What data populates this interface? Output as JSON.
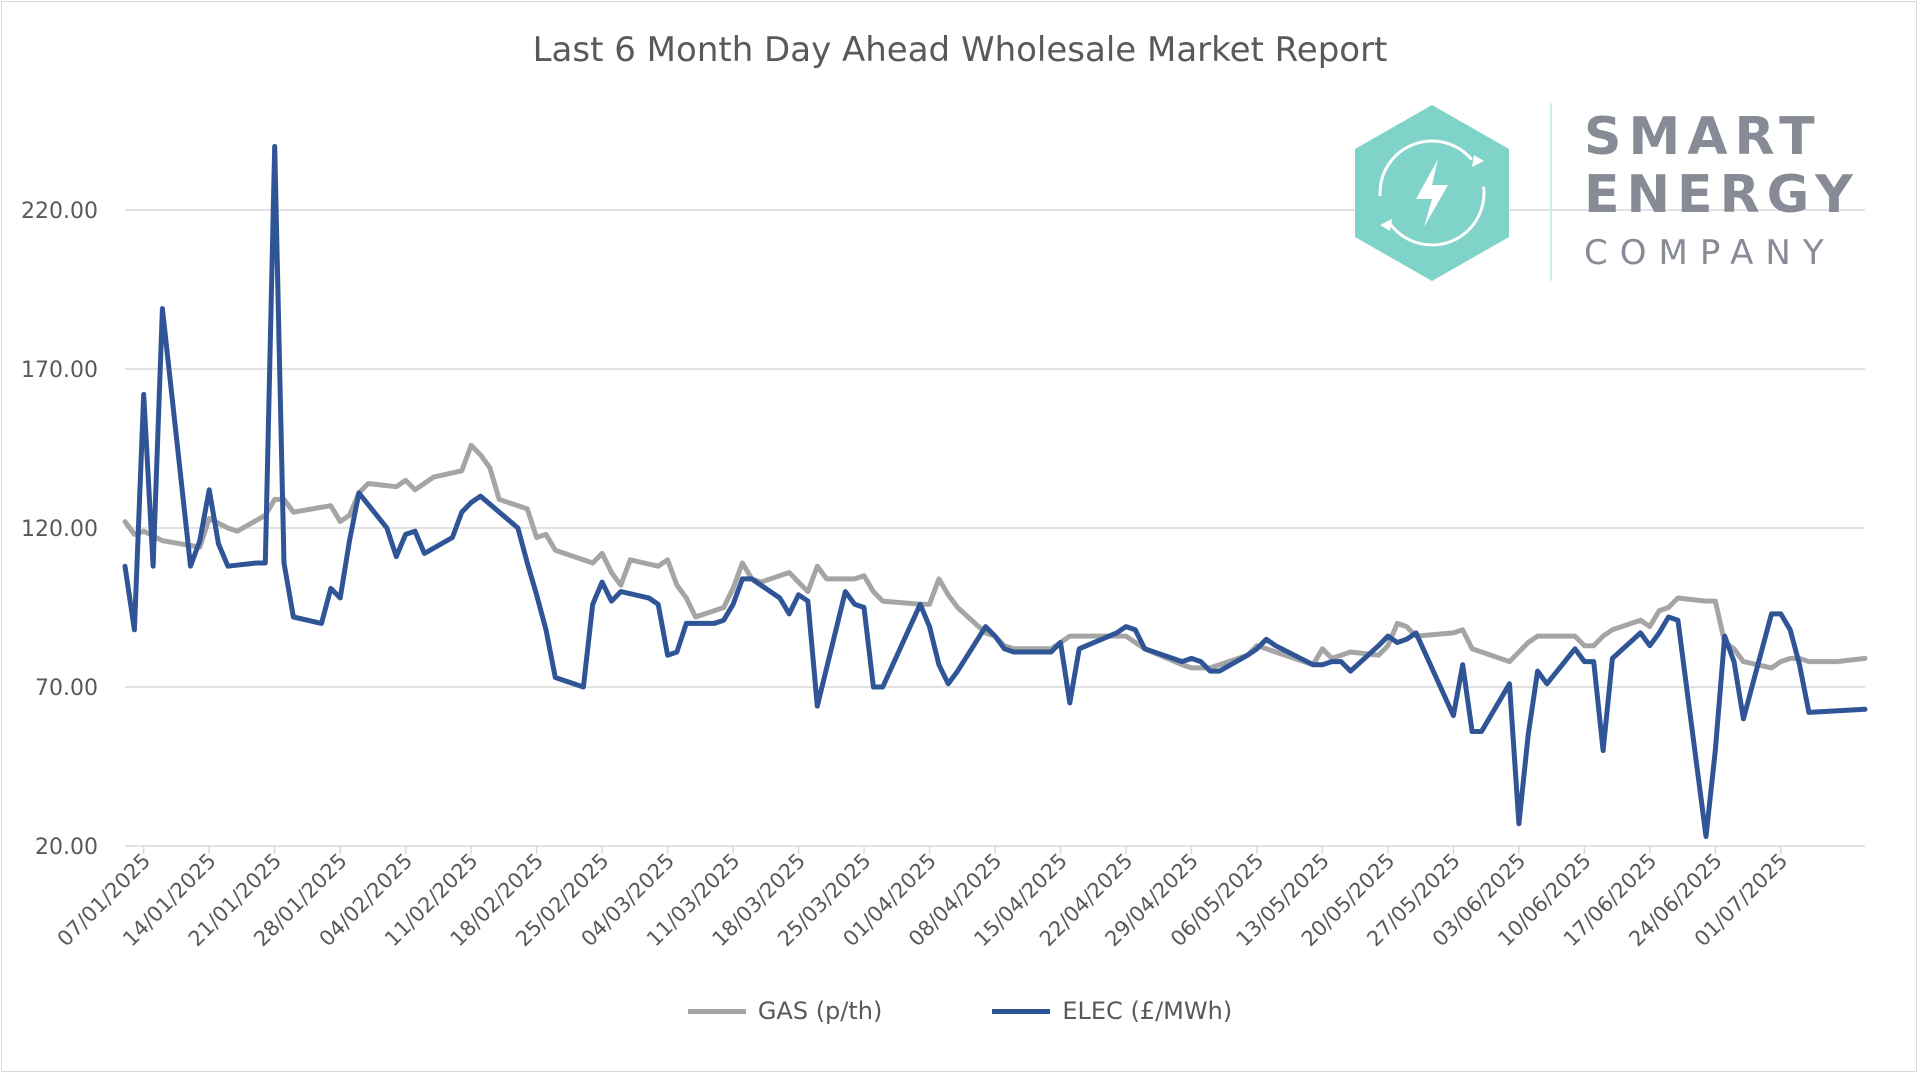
{
  "chart_data": {
    "type": "line",
    "title": "Last 6 Month Day Ahead Wholesale Market Report",
    "xlabel": "",
    "ylabel": "",
    "x_start": "05/01/2025",
    "x_end": "10/07/2025",
    "x_tick_labels": [
      "07/01/2025",
      "14/01/2025",
      "21/01/2025",
      "28/01/2025",
      "04/02/2025",
      "11/02/2025",
      "18/02/2025",
      "25/02/2025",
      "04/03/2025",
      "11/03/2025",
      "18/03/2025",
      "25/03/2025",
      "01/04/2025",
      "08/04/2025",
      "15/04/2025",
      "22/04/2025",
      "29/04/2025",
      "06/05/2025",
      "13/05/2025",
      "20/05/2025",
      "27/05/2025",
      "03/06/2025",
      "10/06/2025",
      "17/06/2025",
      "24/06/2025",
      "01/07/2025"
    ],
    "y_ticks": [
      20,
      70,
      120,
      170,
      220
    ],
    "y_tick_labels": [
      "20.00",
      "70.00",
      "120.00",
      "170.00",
      "220.00"
    ],
    "ylim": [
      20,
      240
    ],
    "grid": true,
    "legend_position": "bottom",
    "series": [
      {
        "name": "GAS (p/th)",
        "color": "#a5a5a5",
        "points": [
          [
            "05/01/2025",
            122
          ],
          [
            "06/01/2025",
            118
          ],
          [
            "07/01/2025",
            119
          ],
          [
            "09/01/2025",
            116
          ],
          [
            "13/01/2025",
            114
          ],
          [
            "14/01/2025",
            123
          ],
          [
            "16/01/2025",
            120
          ],
          [
            "17/01/2025",
            119
          ],
          [
            "20/01/2025",
            124
          ],
          [
            "21/01/2025",
            129
          ],
          [
            "22/01/2025",
            129
          ],
          [
            "23/01/2025",
            125
          ],
          [
            "27/01/2025",
            127
          ],
          [
            "28/01/2025",
            122
          ],
          [
            "29/01/2025",
            124
          ],
          [
            "30/01/2025",
            131
          ],
          [
            "31/01/2025",
            134
          ],
          [
            "03/02/2025",
            133
          ],
          [
            "04/02/2025",
            135
          ],
          [
            "05/02/2025",
            132
          ],
          [
            "07/02/2025",
            136
          ],
          [
            "10/02/2025",
            138
          ],
          [
            "11/02/2025",
            146
          ],
          [
            "12/02/2025",
            143
          ],
          [
            "13/02/2025",
            139
          ],
          [
            "14/02/2025",
            129
          ],
          [
            "17/02/2025",
            126
          ],
          [
            "18/02/2025",
            117
          ],
          [
            "19/02/2025",
            118
          ],
          [
            "20/02/2025",
            113
          ],
          [
            "24/02/2025",
            109
          ],
          [
            "25/02/2025",
            112
          ],
          [
            "26/02/2025",
            106
          ],
          [
            "27/02/2025",
            102
          ],
          [
            "28/02/2025",
            110
          ],
          [
            "03/03/2025",
            108
          ],
          [
            "04/03/2025",
            110
          ],
          [
            "05/03/2025",
            102
          ],
          [
            "06/03/2025",
            98
          ],
          [
            "07/03/2025",
            92
          ],
          [
            "10/03/2025",
            95
          ],
          [
            "11/03/2025",
            101
          ],
          [
            "12/03/2025",
            109
          ],
          [
            "13/03/2025",
            104
          ],
          [
            "14/03/2025",
            103
          ],
          [
            "17/03/2025",
            106
          ],
          [
            "18/03/2025",
            103
          ],
          [
            "19/03/2025",
            100
          ],
          [
            "20/03/2025",
            108
          ],
          [
            "21/03/2025",
            104
          ],
          [
            "24/03/2025",
            104
          ],
          [
            "25/03/2025",
            105
          ],
          [
            "26/03/2025",
            100
          ],
          [
            "27/03/2025",
            97
          ],
          [
            "31/03/2025",
            96
          ],
          [
            "01/04/2025",
            96
          ],
          [
            "02/04/2025",
            104
          ],
          [
            "03/04/2025",
            99
          ],
          [
            "04/04/2025",
            95
          ],
          [
            "07/04/2025",
            87
          ],
          [
            "08/04/2025",
            86
          ],
          [
            "09/04/2025",
            83
          ],
          [
            "10/04/2025",
            82
          ],
          [
            "14/04/2025",
            82
          ],
          [
            "15/04/2025",
            84
          ],
          [
            "16/04/2025",
            86
          ],
          [
            "22/04/2025",
            86
          ],
          [
            "23/04/2025",
            84
          ],
          [
            "24/04/2025",
            82
          ],
          [
            "28/04/2025",
            77
          ],
          [
            "29/04/2025",
            76
          ],
          [
            "30/04/2025",
            76
          ],
          [
            "01/05/2025",
            76
          ],
          [
            "02/05/2025",
            77
          ],
          [
            "05/05/2025",
            80
          ],
          [
            "06/05/2025",
            83
          ],
          [
            "07/05/2025",
            82
          ],
          [
            "12/05/2025",
            77
          ],
          [
            "13/05/2025",
            82
          ],
          [
            "14/05/2025",
            79
          ],
          [
            "15/05/2025",
            80
          ],
          [
            "16/05/2025",
            81
          ],
          [
            "19/05/2025",
            80
          ],
          [
            "20/05/2025",
            83
          ],
          [
            "21/05/2025",
            90
          ],
          [
            "22/05/2025",
            89
          ],
          [
            "23/05/2025",
            86
          ],
          [
            "27/05/2025",
            87
          ],
          [
            "28/05/2025",
            88
          ],
          [
            "29/05/2025",
            82
          ],
          [
            "02/06/2025",
            78
          ],
          [
            "04/06/2025",
            84
          ],
          [
            "05/06/2025",
            86
          ],
          [
            "06/06/2025",
            86
          ],
          [
            "09/06/2025",
            86
          ],
          [
            "10/06/2025",
            83
          ],
          [
            "11/06/2025",
            83
          ],
          [
            "12/06/2025",
            86
          ],
          [
            "13/06/2025",
            88
          ],
          [
            "16/06/2025",
            91
          ],
          [
            "17/06/2025",
            89
          ],
          [
            "18/06/2025",
            94
          ],
          [
            "19/06/2025",
            95
          ],
          [
            "20/06/2025",
            98
          ],
          [
            "23/06/2025",
            97
          ],
          [
            "24/06/2025",
            97
          ],
          [
            "25/06/2025",
            84
          ],
          [
            "26/06/2025",
            82
          ],
          [
            "27/06/2025",
            78
          ],
          [
            "30/06/2025",
            76
          ],
          [
            "01/07/2025",
            78
          ],
          [
            "02/07/2025",
            79
          ],
          [
            "03/07/2025",
            79
          ],
          [
            "04/07/2025",
            78
          ],
          [
            "07/07/2025",
            78
          ],
          [
            "10/07/2025",
            79
          ]
        ]
      },
      {
        "name": "ELEC (£/MWh)",
        "color": "#2f5597",
        "points": [
          [
            "05/01/2025",
            108
          ],
          [
            "06/01/2025",
            88
          ],
          [
            "07/01/2025",
            162
          ],
          [
            "08/01/2025",
            108
          ],
          [
            "09/01/2025",
            189
          ],
          [
            "12/01/2025",
            108
          ],
          [
            "13/01/2025",
            116
          ],
          [
            "14/01/2025",
            132
          ],
          [
            "15/01/2025",
            115
          ],
          [
            "16/01/2025",
            108
          ],
          [
            "19/01/2025",
            109
          ],
          [
            "20/01/2025",
            109
          ],
          [
            "21/01/2025",
            240
          ],
          [
            "22/01/2025",
            109
          ],
          [
            "23/01/2025",
            92
          ],
          [
            "26/01/2025",
            90
          ],
          [
            "27/01/2025",
            101
          ],
          [
            "28/01/2025",
            98
          ],
          [
            "29/01/2025",
            116
          ],
          [
            "30/01/2025",
            131
          ],
          [
            "02/02/2025",
            120
          ],
          [
            "03/02/2025",
            111
          ],
          [
            "04/02/2025",
            118
          ],
          [
            "05/02/2025",
            119
          ],
          [
            "06/02/2025",
            112
          ],
          [
            "09/02/2025",
            117
          ],
          [
            "10/02/2025",
            125
          ],
          [
            "11/02/2025",
            128
          ],
          [
            "12/02/2025",
            130
          ],
          [
            "16/02/2025",
            120
          ],
          [
            "17/02/2025",
            109
          ],
          [
            "18/02/2025",
            99
          ],
          [
            "19/02/2025",
            88
          ],
          [
            "20/02/2025",
            73
          ],
          [
            "23/02/2025",
            70
          ],
          [
            "24/02/2025",
            96
          ],
          [
            "25/02/2025",
            103
          ],
          [
            "26/02/2025",
            97
          ],
          [
            "27/02/2025",
            100
          ],
          [
            "02/03/2025",
            98
          ],
          [
            "03/03/2025",
            96
          ],
          [
            "04/03/2025",
            80
          ],
          [
            "05/03/2025",
            81
          ],
          [
            "06/03/2025",
            90
          ],
          [
            "09/03/2025",
            90
          ],
          [
            "10/03/2025",
            91
          ],
          [
            "11/03/2025",
            96
          ],
          [
            "12/03/2025",
            104
          ],
          [
            "13/03/2025",
            104
          ],
          [
            "16/03/2025",
            98
          ],
          [
            "17/03/2025",
            93
          ],
          [
            "18/03/2025",
            99
          ],
          [
            "19/03/2025",
            97
          ],
          [
            "20/03/2025",
            64
          ],
          [
            "23/03/2025",
            100
          ],
          [
            "24/03/2025",
            96
          ],
          [
            "25/03/2025",
            95
          ],
          [
            "26/03/2025",
            70
          ],
          [
            "27/03/2025",
            70
          ],
          [
            "31/03/2025",
            96
          ],
          [
            "01/04/2025",
            89
          ],
          [
            "02/04/2025",
            77
          ],
          [
            "03/04/2025",
            71
          ],
          [
            "04/04/2025",
            75
          ],
          [
            "07/04/2025",
            89
          ],
          [
            "08/04/2025",
            86
          ],
          [
            "09/04/2025",
            82
          ],
          [
            "10/04/2025",
            81
          ],
          [
            "13/04/2025",
            81
          ],
          [
            "14/04/2025",
            81
          ],
          [
            "15/04/2025",
            84
          ],
          [
            "16/04/2025",
            65
          ],
          [
            "17/04/2025",
            82
          ],
          [
            "21/04/2025",
            87
          ],
          [
            "22/04/2025",
            89
          ],
          [
            "23/04/2025",
            88
          ],
          [
            "24/04/2025",
            82
          ],
          [
            "27/04/2025",
            79
          ],
          [
            "28/04/2025",
            78
          ],
          [
            "29/04/2025",
            79
          ],
          [
            "30/04/2025",
            78
          ],
          [
            "01/05/2025",
            75
          ],
          [
            "02/05/2025",
            75
          ],
          [
            "05/05/2025",
            80
          ],
          [
            "06/05/2025",
            82
          ],
          [
            "07/05/2025",
            85
          ],
          [
            "08/05/2025",
            83
          ],
          [
            "12/05/2025",
            77
          ],
          [
            "13/05/2025",
            77
          ],
          [
            "14/05/2025",
            78
          ],
          [
            "15/05/2025",
            78
          ],
          [
            "16/05/2025",
            75
          ],
          [
            "19/05/2025",
            83
          ],
          [
            "20/05/2025",
            86
          ],
          [
            "21/05/2025",
            84
          ],
          [
            "22/05/2025",
            85
          ],
          [
            "23/05/2025",
            87
          ],
          [
            "27/05/2025",
            61
          ],
          [
            "28/05/2025",
            77
          ],
          [
            "29/05/2025",
            56
          ],
          [
            "30/05/2025",
            56
          ],
          [
            "02/06/2025",
            71
          ],
          [
            "03/06/2025",
            27
          ],
          [
            "04/06/2025",
            55
          ],
          [
            "05/06/2025",
            75
          ],
          [
            "06/06/2025",
            71
          ],
          [
            "09/06/2025",
            82
          ],
          [
            "10/06/2025",
            78
          ],
          [
            "11/06/2025",
            78
          ],
          [
            "12/06/2025",
            50
          ],
          [
            "13/06/2025",
            79
          ],
          [
            "16/06/2025",
            87
          ],
          [
            "17/06/2025",
            83
          ],
          [
            "18/06/2025",
            87
          ],
          [
            "19/06/2025",
            92
          ],
          [
            "20/06/2025",
            91
          ],
          [
            "23/06/2025",
            23
          ],
          [
            "24/06/2025",
            50
          ],
          [
            "25/06/2025",
            86
          ],
          [
            "26/06/2025",
            78
          ],
          [
            "27/06/2025",
            60
          ],
          [
            "30/06/2025",
            93
          ],
          [
            "01/07/2025",
            93
          ],
          [
            "02/07/2025",
            88
          ],
          [
            "03/07/2025",
            77
          ],
          [
            "04/07/2025",
            62
          ],
          [
            "10/07/2025",
            63
          ]
        ]
      }
    ]
  },
  "logo": {
    "line1": "SMART",
    "line2": "ENERGY",
    "line3": "COMPANY",
    "icon": "lightning-refresh-hexagon-icon",
    "color_hex": "#7fd3c8",
    "color_text": "#878b95"
  }
}
